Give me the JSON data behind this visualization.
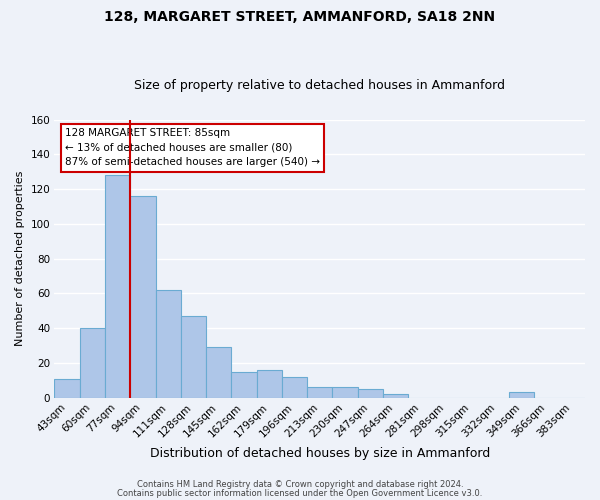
{
  "title": "128, MARGARET STREET, AMMANFORD, SA18 2NN",
  "subtitle": "Size of property relative to detached houses in Ammanford",
  "xlabel": "Distribution of detached houses by size in Ammanford",
  "ylabel": "Number of detached properties",
  "bar_labels": [
    "43sqm",
    "60sqm",
    "77sqm",
    "94sqm",
    "111sqm",
    "128sqm",
    "145sqm",
    "162sqm",
    "179sqm",
    "196sqm",
    "213sqm",
    "230sqm",
    "247sqm",
    "264sqm",
    "281sqm",
    "298sqm",
    "315sqm",
    "332sqm",
    "349sqm",
    "366sqm",
    "383sqm"
  ],
  "bar_heights": [
    11,
    40,
    128,
    116,
    62,
    47,
    29,
    15,
    16,
    12,
    6,
    6,
    5,
    2,
    0,
    0,
    0,
    0,
    3,
    0,
    0
  ],
  "bar_color": "#aec6e8",
  "bar_edge_color": "#6aabd2",
  "vline_index": 2,
  "vline_color": "#cc0000",
  "annotation_title": "128 MARGARET STREET: 85sqm",
  "annotation_line1": "← 13% of detached houses are smaller (80)",
  "annotation_line2": "87% of semi-detached houses are larger (540) →",
  "annotation_box_color": "#ffffff",
  "annotation_box_edge_color": "#cc0000",
  "ylim": [
    0,
    160
  ],
  "yticks": [
    0,
    20,
    40,
    60,
    80,
    100,
    120,
    140,
    160
  ],
  "footer1": "Contains HM Land Registry data © Crown copyright and database right 2024.",
  "footer2": "Contains public sector information licensed under the Open Government Licence v3.0.",
  "bg_color": "#eef2f9",
  "grid_color": "#ffffff",
  "title_fontsize": 10,
  "subtitle_fontsize": 9,
  "ylabel_fontsize": 8,
  "xlabel_fontsize": 9,
  "tick_fontsize": 7.5,
  "ann_fontsize": 7.5,
  "footer_fontsize": 6
}
